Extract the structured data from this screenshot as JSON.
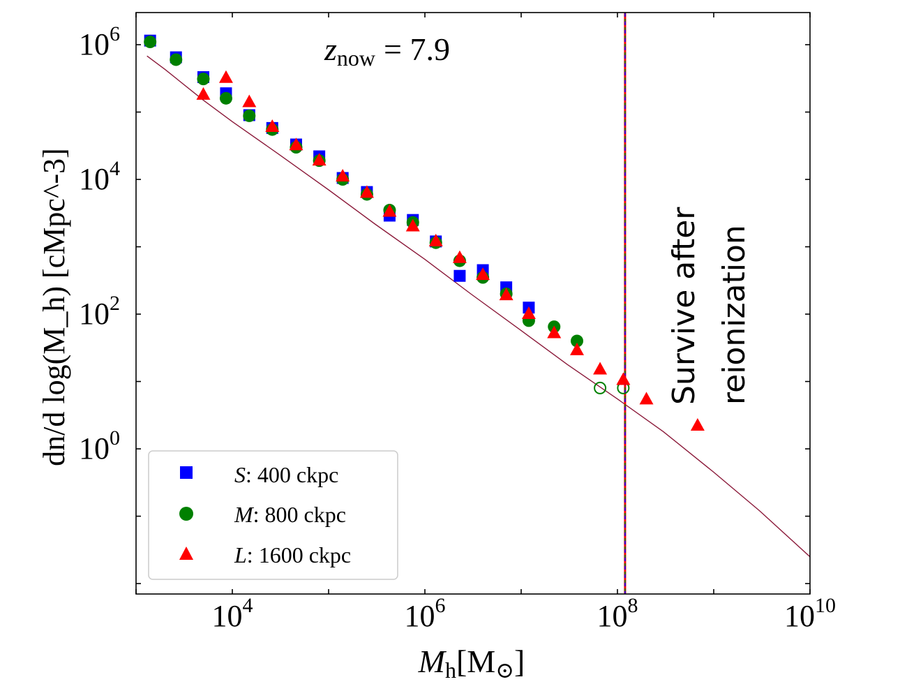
{
  "chart_data": {
    "type": "scatter",
    "title": "",
    "annotation_z": {
      "base": "z",
      "sub": "now",
      "rest": "= 7.9"
    },
    "annotation_survive": [
      "Survive after",
      "reionization"
    ],
    "xlabel": {
      "base": "M",
      "sub": "h",
      "unit_open": "[M",
      "unit_sym": "⊙",
      "unit_close": "]"
    },
    "ylabel": "dn/d log(M_h) [cMpc^-3]",
    "x_scale": "log",
    "y_scale": "log",
    "xlim": [
      1000,
      10000000000
    ],
    "ylim": [
      0.007,
      3000000
    ],
    "x_ticks": [
      {
        "value": 10000,
        "base": "10",
        "exp": "4"
      },
      {
        "value": 1000000,
        "base": "10",
        "exp": "6"
      },
      {
        "value": 100000000,
        "base": "10",
        "exp": "8"
      },
      {
        "value": 10000000000,
        "base": "10",
        "exp": "10"
      }
    ],
    "y_ticks": [
      {
        "value": 1,
        "base": "10",
        "exp": "0"
      },
      {
        "value": 100,
        "base": "10",
        "exp": "2"
      },
      {
        "value": 10000,
        "base": "10",
        "exp": "4"
      },
      {
        "value": 1000000,
        "base": "10",
        "exp": "6"
      }
    ],
    "vertical_line_x": 120000000,
    "curve": {
      "color": "#8b1a3a",
      "x": [
        1300,
        2000,
        5000,
        10000,
        30000,
        100000,
        300000,
        1000000,
        3000000,
        10000000,
        30000000,
        100000000,
        300000000,
        1000000000,
        3000000000,
        10000000000
      ],
      "y": [
        680000,
        430000,
        150000,
        72000,
        24000,
        7000,
        2200,
        650,
        200,
        57,
        18,
        5.5,
        1.8,
        0.45,
        0.12,
        0.025
      ]
    },
    "series": [
      {
        "name": "S",
        "label_rest": ":  400 ckpc",
        "marker": "square",
        "color": "#0000ff",
        "points": [
          [
            1400,
            1150000
          ],
          [
            2600,
            650000
          ],
          [
            5000,
            330000
          ],
          [
            8600,
            190000
          ],
          [
            15000,
            90000
          ],
          [
            26000,
            58000
          ],
          [
            46000,
            33000
          ],
          [
            80000,
            22000
          ],
          [
            140000,
            10500
          ],
          [
            250000,
            6500
          ],
          [
            430000,
            2900
          ],
          [
            750000,
            2500
          ],
          [
            1300000,
            1200
          ],
          [
            2300000,
            370
          ],
          [
            4000000,
            450
          ],
          [
            7000000,
            250
          ],
          [
            12000000,
            125
          ]
        ],
        "hollow": []
      },
      {
        "name": "M",
        "label_rest": ":  800 ckpc",
        "marker": "circle",
        "color": "#008000",
        "points": [
          [
            1400,
            1100000
          ],
          [
            2600,
            600000
          ],
          [
            5000,
            310000
          ],
          [
            8600,
            160000
          ],
          [
            15000,
            88000
          ],
          [
            26000,
            55000
          ],
          [
            46000,
            30000
          ],
          [
            80000,
            19000
          ],
          [
            140000,
            10000
          ],
          [
            250000,
            6000
          ],
          [
            430000,
            3500
          ],
          [
            750000,
            2300
          ],
          [
            1300000,
            1150
          ],
          [
            2300000,
            620
          ],
          [
            4000000,
            350
          ],
          [
            7000000,
            200
          ],
          [
            12000000,
            80
          ],
          [
            22000000,
            65
          ],
          [
            38000000,
            40
          ]
        ],
        "hollow": [
          [
            66000000,
            8
          ],
          [
            115000000,
            8
          ]
        ]
      },
      {
        "name": "L",
        "label_rest": ":  1600 ckpc",
        "marker": "triangle",
        "color": "#ff0000",
        "points": [
          [
            5000,
            180000
          ],
          [
            8600,
            320000
          ],
          [
            15000,
            140000
          ],
          [
            26000,
            60000
          ],
          [
            46000,
            32000
          ],
          [
            80000,
            19000
          ],
          [
            140000,
            11000
          ],
          [
            250000,
            6300
          ],
          [
            430000,
            3300
          ],
          [
            750000,
            2000
          ],
          [
            1300000,
            1200
          ],
          [
            2300000,
            680
          ],
          [
            4000000,
            380
          ],
          [
            7000000,
            190
          ],
          [
            12000000,
            100
          ],
          [
            22000000,
            52
          ],
          [
            38000000,
            29
          ],
          [
            66000000,
            15
          ],
          [
            115000000,
            10.5
          ],
          [
            200000000,
            5.4
          ],
          [
            680000000,
            2.2
          ]
        ],
        "hollow": []
      }
    ],
    "legend_placement": "lower-left",
    "grid": false
  }
}
